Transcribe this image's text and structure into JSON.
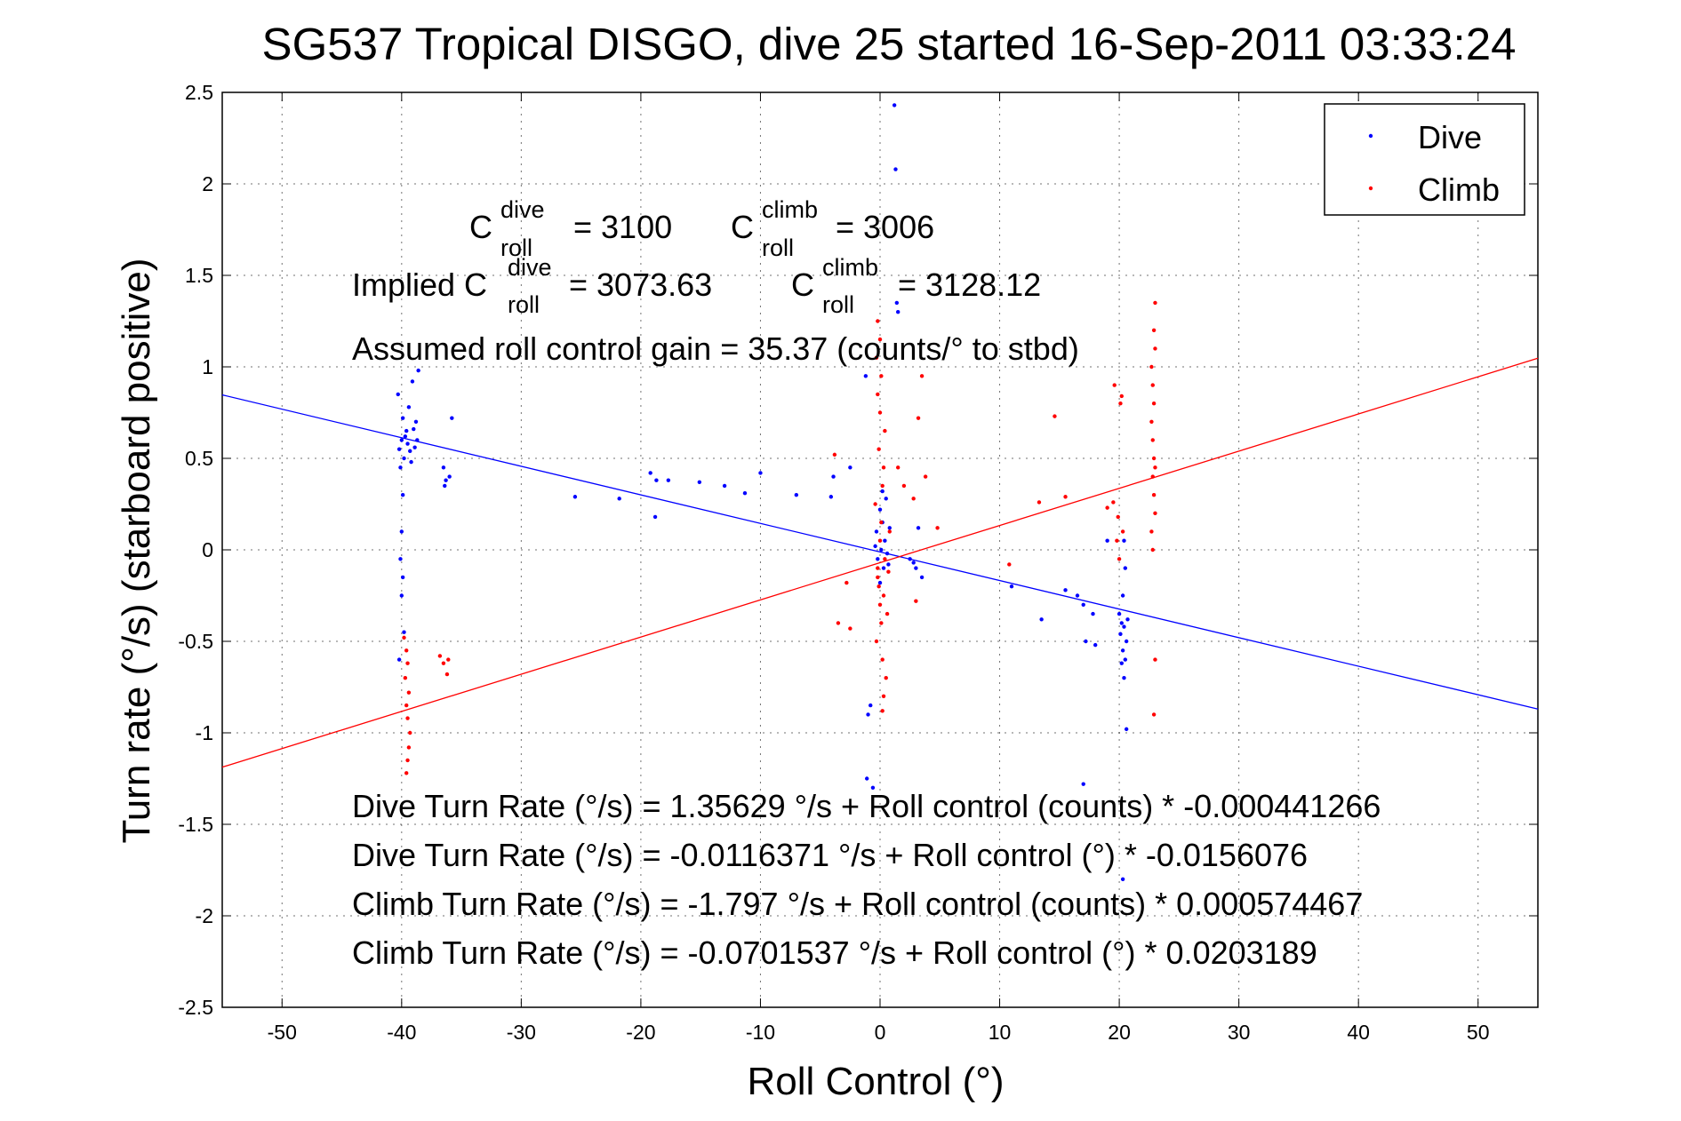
{
  "colors": {
    "dive": "#0000ff",
    "climb": "#ff0000"
  },
  "chart_data": {
    "type": "scatter",
    "title": "SG537 Tropical DISGO, dive 25 started 16-Sep-2011 03:33:24",
    "xlabel": "Roll Control (°)",
    "ylabel": "Turn rate (°/s)  (starboard positive)",
    "xlim": [
      -55,
      55
    ],
    "ylim": [
      -2.5,
      2.5
    ],
    "x_ticks": [
      -50,
      -40,
      -30,
      -20,
      -10,
      0,
      10,
      20,
      30,
      40,
      50
    ],
    "y_ticks": [
      2.5,
      2,
      1.5,
      1,
      0.5,
      0,
      -0.5,
      -1,
      -1.5,
      -2,
      -2.5
    ],
    "x_tick_labels": [
      "-50",
      "-40",
      "-30",
      "-20",
      "-10",
      "0",
      "10",
      "20",
      "30",
      "40",
      "50"
    ],
    "y_tick_labels": [
      "2.5",
      "2",
      "1.5",
      "1",
      "0.5",
      "0",
      "-0.5",
      "-1",
      "-1.5",
      "-2",
      "-2.5"
    ],
    "grid": true,
    "legend_position": "top-right",
    "series": [
      {
        "name": "Dive",
        "color": "#0000ff",
        "points": [
          [
            -40.2,
            0.55
          ],
          [
            -40.0,
            0.6
          ],
          [
            -39.8,
            0.5
          ],
          [
            -39.6,
            0.65
          ],
          [
            -39.9,
            0.72
          ],
          [
            -40.1,
            0.45
          ],
          [
            -39.5,
            0.58
          ],
          [
            -39.7,
            0.62
          ],
          [
            -39.3,
            0.54
          ],
          [
            -39.2,
            0.48
          ],
          [
            -39.0,
            0.66
          ],
          [
            -38.9,
            0.56
          ],
          [
            -38.8,
            0.7
          ],
          [
            -39.4,
            0.78
          ],
          [
            -38.7,
            0.6
          ],
          [
            -39.1,
            0.92
          ],
          [
            -38.6,
            0.98
          ],
          [
            -40.3,
            0.85
          ],
          [
            -39.9,
            0.3
          ],
          [
            -40.0,
            0.1
          ],
          [
            -40.1,
            -0.05
          ],
          [
            -39.9,
            -0.15
          ],
          [
            -40.0,
            -0.25
          ],
          [
            -39.8,
            -0.45
          ],
          [
            -40.2,
            -0.6
          ],
          [
            -36.5,
            0.45
          ],
          [
            -36.3,
            0.38
          ],
          [
            -36.0,
            0.4
          ],
          [
            -36.4,
            0.35
          ],
          [
            -35.8,
            0.72
          ],
          [
            -25.5,
            0.29
          ],
          [
            -21.8,
            0.28
          ],
          [
            -19.2,
            0.42
          ],
          [
            -18.7,
            0.38
          ],
          [
            -18.8,
            0.18
          ],
          [
            -17.7,
            0.38
          ],
          [
            -15.1,
            0.37
          ],
          [
            -13.0,
            0.35
          ],
          [
            -11.3,
            0.31
          ],
          [
            -10.0,
            0.42
          ],
          [
            -7.0,
            0.3
          ],
          [
            -4.1,
            0.29
          ],
          [
            -3.9,
            0.4
          ],
          [
            -2.5,
            0.45
          ],
          [
            0.0,
            0.22
          ],
          [
            0.2,
            0.15
          ],
          [
            -0.3,
            0.1
          ],
          [
            0.4,
            0.05
          ],
          [
            0.1,
            0.0
          ],
          [
            -0.2,
            -0.05
          ],
          [
            0.3,
            -0.1
          ],
          [
            0.0,
            -0.18
          ],
          [
            0.5,
            0.28
          ],
          [
            -0.4,
            0.02
          ],
          [
            0.6,
            -0.02
          ],
          [
            0.2,
            0.32
          ],
          [
            0.8,
            0.12
          ],
          [
            0.7,
            -0.08
          ],
          [
            1.2,
            2.43
          ],
          [
            1.3,
            2.08
          ],
          [
            1.4,
            1.35
          ],
          [
            1.5,
            1.3
          ],
          [
            -1.2,
            0.95
          ],
          [
            -1.0,
            -0.9
          ],
          [
            -0.8,
            -0.85
          ],
          [
            -1.1,
            -1.25
          ],
          [
            -0.6,
            -1.3
          ],
          [
            2.5,
            -0.05
          ],
          [
            3.0,
            -0.1
          ],
          [
            3.5,
            -0.15
          ],
          [
            2.8,
            -0.07
          ],
          [
            3.2,
            0.12
          ],
          [
            11.0,
            -0.2
          ],
          [
            13.5,
            -0.38
          ],
          [
            15.5,
            -0.22
          ],
          [
            16.5,
            -0.25
          ],
          [
            17.0,
            -0.3
          ],
          [
            17.2,
            -0.5
          ],
          [
            17.8,
            -0.35
          ],
          [
            18.0,
            -0.52
          ],
          [
            19.0,
            0.05
          ],
          [
            20.0,
            -0.35
          ],
          [
            20.2,
            -0.4
          ],
          [
            20.4,
            -0.42
          ],
          [
            20.6,
            -0.5
          ],
          [
            20.3,
            -0.55
          ],
          [
            20.5,
            -0.6
          ],
          [
            20.1,
            -0.46
          ],
          [
            20.7,
            -0.38
          ],
          [
            20.2,
            -0.62
          ],
          [
            20.4,
            -0.7
          ],
          [
            20.3,
            -0.25
          ],
          [
            20.5,
            -0.1
          ],
          [
            20.4,
            0.05
          ],
          [
            20.6,
            -0.98
          ],
          [
            20.3,
            -1.8
          ],
          [
            17.0,
            -1.28
          ]
        ]
      },
      {
        "name": "Climb",
        "color": "#ff0000",
        "points": [
          [
            -39.8,
            -0.48
          ],
          [
            -39.6,
            -0.55
          ],
          [
            -39.5,
            -0.62
          ],
          [
            -39.7,
            -0.7
          ],
          [
            -39.4,
            -0.78
          ],
          [
            -39.6,
            -0.85
          ],
          [
            -39.5,
            -0.92
          ],
          [
            -39.3,
            -1.0
          ],
          [
            -39.4,
            -1.08
          ],
          [
            -39.5,
            -1.15
          ],
          [
            -39.6,
            -1.22
          ],
          [
            -36.8,
            -0.58
          ],
          [
            -36.5,
            -0.62
          ],
          [
            -36.2,
            -0.68
          ],
          [
            -36.1,
            -0.6
          ],
          [
            -3.8,
            0.52
          ],
          [
            -3.5,
            -0.4
          ],
          [
            -2.8,
            -0.18
          ],
          [
            -2.5,
            -0.43
          ],
          [
            -0.2,
            -0.1
          ],
          [
            -0.1,
            -0.2
          ],
          [
            0.0,
            -0.3
          ],
          [
            0.1,
            -0.4
          ],
          [
            -0.3,
            -0.5
          ],
          [
            0.2,
            -0.6
          ],
          [
            0.3,
            -0.25
          ],
          [
            -0.2,
            -0.15
          ],
          [
            0.4,
            -0.05
          ],
          [
            0.0,
            0.05
          ],
          [
            0.1,
            0.15
          ],
          [
            -0.4,
            0.25
          ],
          [
            0.2,
            0.35
          ],
          [
            0.3,
            0.45
          ],
          [
            -0.1,
            0.55
          ],
          [
            0.4,
            0.65
          ],
          [
            0.0,
            0.75
          ],
          [
            -0.2,
            0.85
          ],
          [
            0.1,
            0.95
          ],
          [
            -0.3,
            1.05
          ],
          [
            0.0,
            1.15
          ],
          [
            -0.2,
            1.25
          ],
          [
            0.5,
            -0.7
          ],
          [
            0.3,
            -0.8
          ],
          [
            0.2,
            -0.88
          ],
          [
            0.6,
            -0.35
          ],
          [
            0.7,
            -0.12
          ],
          [
            0.8,
            0.1
          ],
          [
            1.5,
            0.45
          ],
          [
            2.0,
            0.35
          ],
          [
            2.8,
            0.28
          ],
          [
            3.2,
            0.72
          ],
          [
            3.5,
            0.95
          ],
          [
            3.8,
            0.4
          ],
          [
            3.0,
            -0.28
          ],
          [
            4.8,
            0.12
          ],
          [
            10.8,
            -0.08
          ],
          [
            13.3,
            0.26
          ],
          [
            14.6,
            0.73
          ],
          [
            15.5,
            0.29
          ],
          [
            19.0,
            0.23
          ],
          [
            19.5,
            0.26
          ],
          [
            19.8,
            0.05
          ],
          [
            19.6,
            0.9
          ],
          [
            20.2,
            0.84
          ],
          [
            20.1,
            0.8
          ],
          [
            19.9,
            0.18
          ],
          [
            20.3,
            0.1
          ],
          [
            20.0,
            -0.05
          ],
          [
            22.7,
            0.7
          ],
          [
            22.8,
            0.6
          ],
          [
            22.9,
            0.5
          ],
          [
            23.0,
            0.45
          ],
          [
            22.8,
            0.4
          ],
          [
            22.9,
            0.3
          ],
          [
            23.0,
            0.2
          ],
          [
            22.7,
            0.1
          ],
          [
            22.8,
            0.0
          ],
          [
            22.9,
            0.8
          ],
          [
            22.8,
            0.9
          ],
          [
            22.7,
            1.0
          ],
          [
            23.0,
            1.1
          ],
          [
            22.9,
            1.2
          ],
          [
            23.0,
            1.35
          ],
          [
            22.9,
            -0.9
          ],
          [
            23.0,
            -0.6
          ]
        ]
      }
    ],
    "fit_lines": [
      {
        "series": "Dive",
        "intercept": -0.0116371,
        "slope": -0.0156076
      },
      {
        "series": "Climb",
        "intercept": -0.0701537,
        "slope": 0.0203189
      }
    ],
    "legend": [
      "Dive",
      "Climb"
    ]
  },
  "annotations": {
    "c": "C",
    "roll": "roll",
    "dive": "dive",
    "climb": "climb",
    "c_roll_dive_value": "= 3100",
    "c_roll_climb_value": "= 3006",
    "implied_prefix": "Implied C",
    "implied_dive_value": "= 3073.63",
    "implied_climb_value": "= 3128.12",
    "gain_text": "Assumed roll control gain = 35.37 (counts/° to stbd)",
    "eq1": "Dive Turn Rate (°/s) = 1.35629 °/s + Roll control (counts) * -0.000441266",
    "eq2": "Dive Turn Rate (°/s) = -0.0116371 °/s + Roll control (°) * -0.0156076",
    "eq3": "Climb Turn Rate (°/s) = -1.797 °/s + Roll control (counts) * 0.000574467",
    "eq4": "Climb Turn Rate (°/s) = -0.0701537 °/s + Roll control (°) * 0.0203189"
  }
}
